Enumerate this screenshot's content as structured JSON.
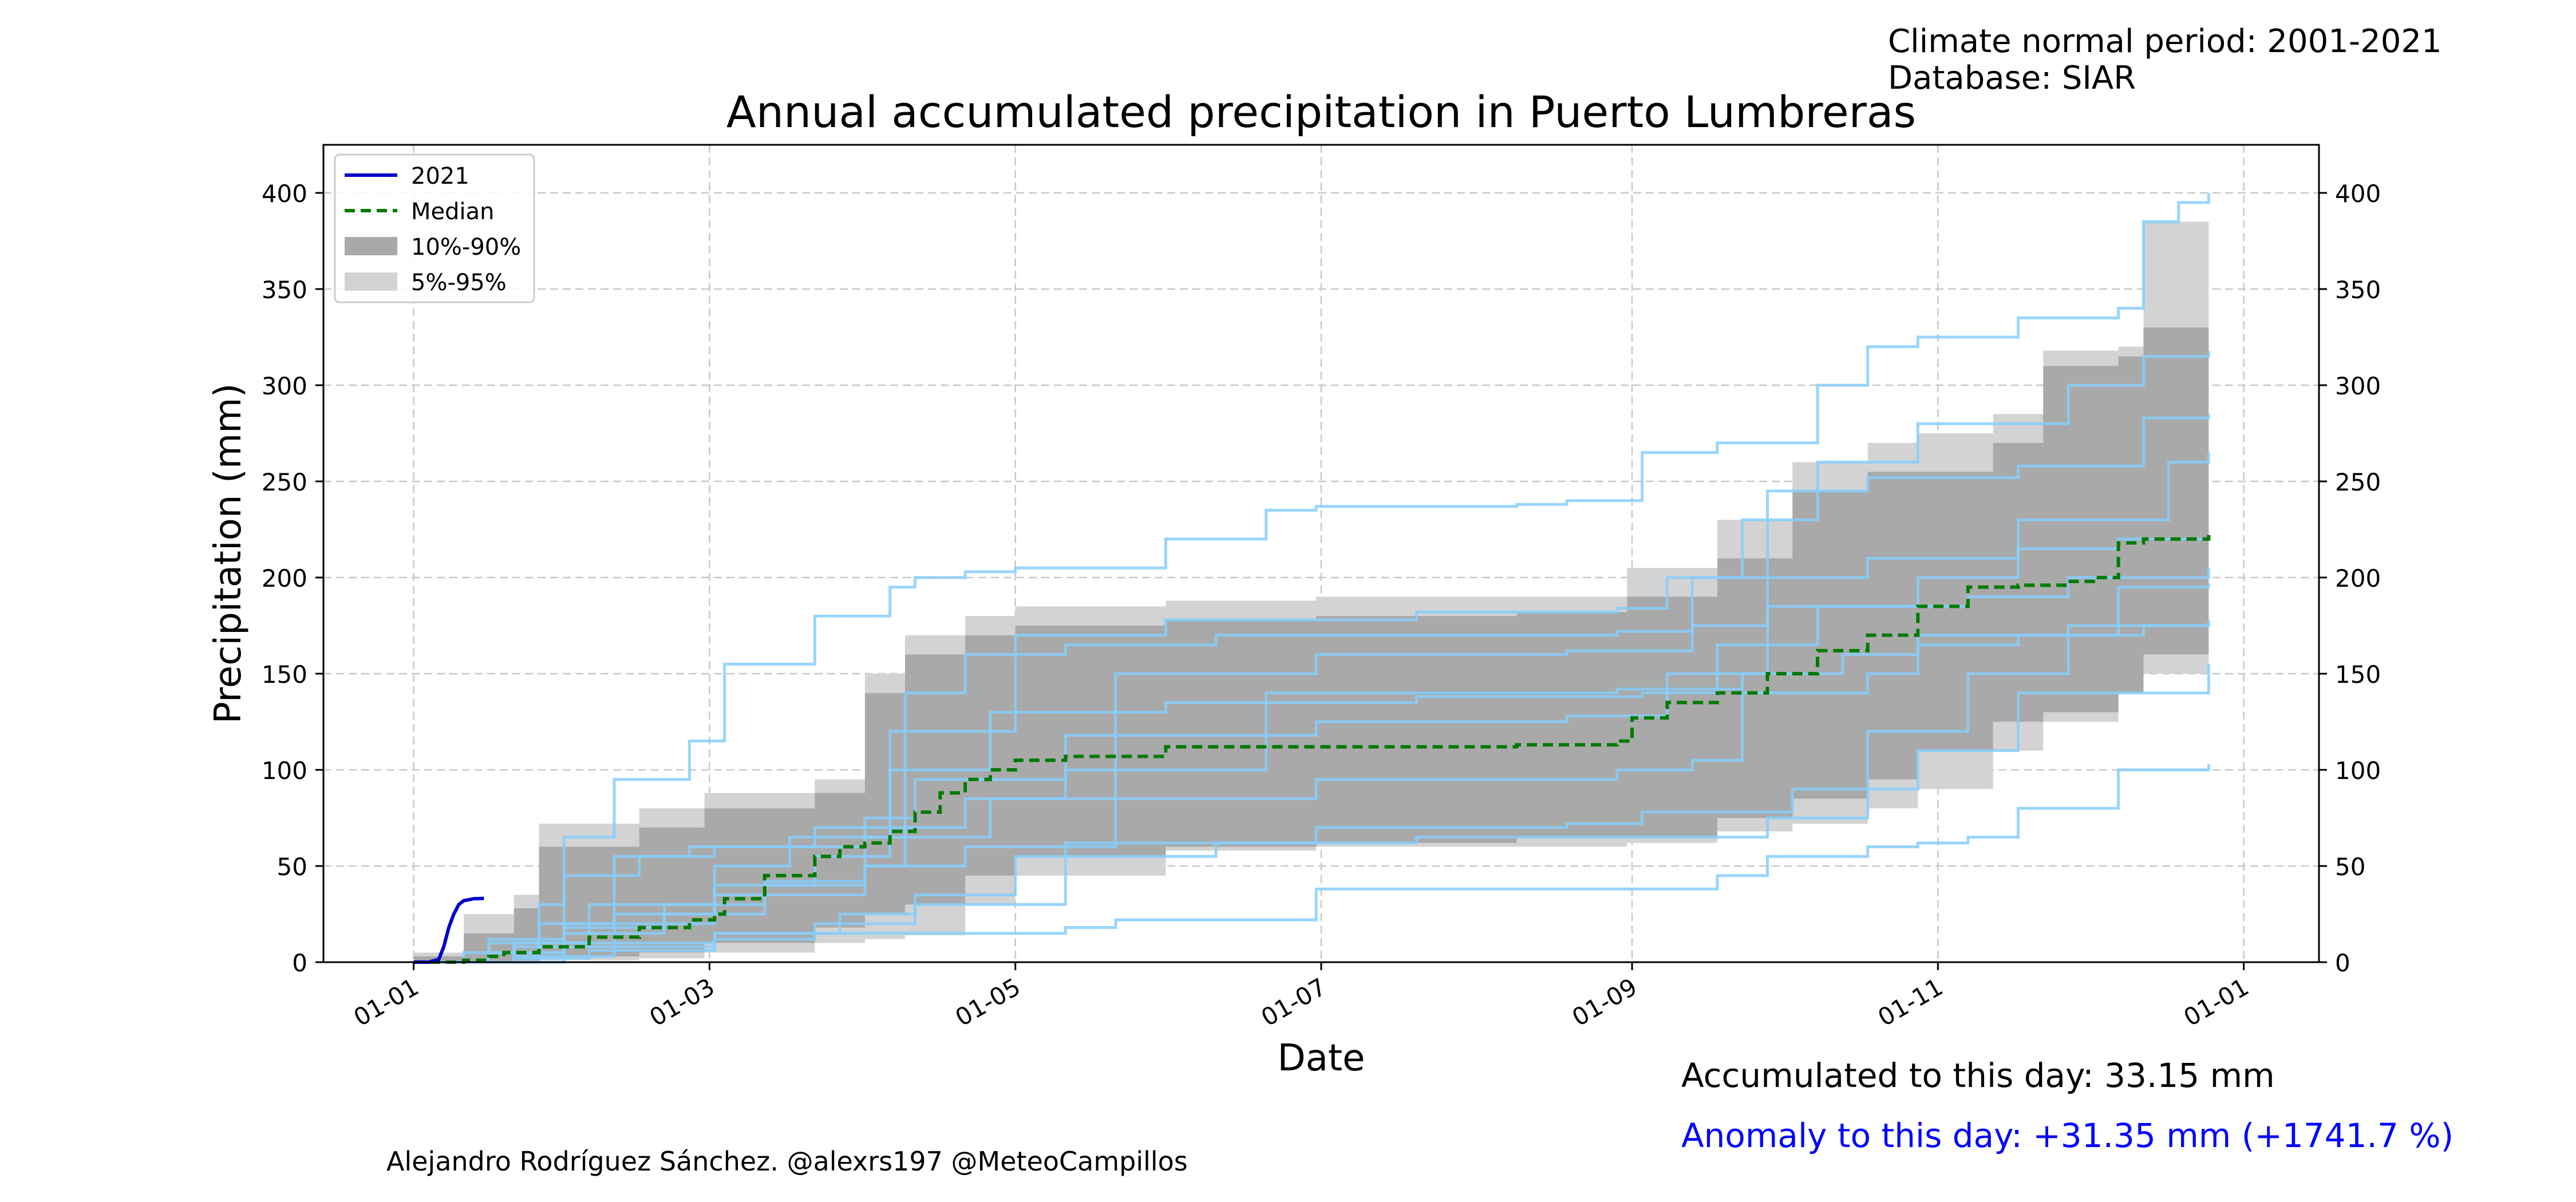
{
  "meta": {
    "period_text": "Climate normal period: 2001-2021",
    "database_text": "Database: SIAR"
  },
  "accumulated_text": "Accumulated to this day: 33.15 mm",
  "anomaly_text": "Anomaly to this day: +31.35 mm (+1741.7 %)",
  "credits_text": "Alejandro Rodríguez Sánchez. @alexrs197 @MeteoCampillos",
  "colors": {
    "current_year": "#0000cc",
    "median": "#007a00",
    "band_10_90": "#a9a9a9",
    "band_5_95": "#d3d3d3",
    "history_lines": "#87cefa",
    "anomaly_text": "#0000ff",
    "grid": "#c8c8c8"
  },
  "chart_data": {
    "type": "line",
    "title": "Annual accumulated precipitation in Puerto Lumbreras",
    "xlabel": "Date",
    "ylabel": "Precipitation (mm)",
    "x_tick_labels": [
      "01-01",
      "01-03",
      "01-05",
      "01-07",
      "01-09",
      "01-11",
      "01-01"
    ],
    "x_tick_days": [
      0,
      59,
      120,
      181,
      243,
      304,
      365
    ],
    "xlim_days": [
      -18,
      380
    ],
    "ylim": [
      0,
      425
    ],
    "y_ticks": [
      0,
      50,
      100,
      150,
      200,
      250,
      300,
      350,
      400
    ],
    "grid": true,
    "legend_position": "top-left",
    "legend": [
      {
        "label": "2021",
        "kind": "line",
        "color": "#0000cc"
      },
      {
        "label": "Median",
        "kind": "dashed",
        "color": "#007a00"
      },
      {
        "label": "10%-90%",
        "kind": "patch",
        "color": "#a9a9a9"
      },
      {
        "label": "5%-95%",
        "kind": "patch",
        "color": "#d3d3d3"
      }
    ],
    "band_5_95": {
      "days": [
        0,
        10,
        20,
        25,
        45,
        58,
        80,
        90,
        98,
        110,
        120,
        150,
        180,
        220,
        242,
        260,
        275,
        290,
        300,
        315,
        325,
        340,
        345,
        358
      ],
      "low": [
        0,
        0,
        0,
        1,
        2,
        5,
        10,
        12,
        14,
        30,
        45,
        58,
        60,
        60,
        62,
        68,
        72,
        80,
        90,
        110,
        125,
        140,
        150,
        155
      ],
      "high": [
        5,
        25,
        35,
        72,
        80,
        88,
        95,
        150,
        170,
        180,
        185,
        188,
        190,
        190,
        205,
        230,
        260,
        270,
        275,
        285,
        318,
        320,
        385,
        385
      ]
    },
    "band_10_90": {
      "days": [
        0,
        10,
        20,
        25,
        45,
        58,
        80,
        90,
        98,
        110,
        120,
        150,
        180,
        220,
        242,
        260,
        275,
        290,
        300,
        315,
        325,
        340,
        345,
        358
      ],
      "low": [
        0,
        0,
        1,
        3,
        5,
        10,
        18,
        25,
        30,
        45,
        55,
        60,
        62,
        65,
        65,
        75,
        85,
        95,
        110,
        125,
        130,
        140,
        160,
        170
      ],
      "high": [
        3,
        15,
        28,
        60,
        70,
        80,
        88,
        140,
        160,
        170,
        175,
        178,
        180,
        182,
        190,
        210,
        245,
        255,
        255,
        270,
        310,
        315,
        330,
        335
      ]
    },
    "series": [
      {
        "name": "Median",
        "style": "dashed",
        "x": [
          0,
          10,
          15,
          18,
          25,
          35,
          45,
          55,
          60,
          62,
          70,
          80,
          85,
          90,
          95,
          100,
          105,
          110,
          115,
          120,
          130,
          150,
          180,
          220,
          240,
          243,
          250,
          260,
          270,
          280,
          290,
          300,
          310,
          320,
          330,
          335,
          340,
          345,
          358
        ],
        "y": [
          0,
          1,
          3,
          5,
          8,
          13,
          18,
          22,
          25,
          33,
          45,
          55,
          60,
          62,
          68,
          78,
          88,
          95,
          100,
          105,
          107,
          112,
          112,
          113,
          115,
          127,
          135,
          140,
          150,
          162,
          170,
          185,
          195,
          196,
          198,
          200,
          218,
          220,
          225
        ]
      },
      {
        "name": "2021",
        "style": "solid",
        "x": [
          0,
          3,
          5,
          6,
          7,
          8,
          9,
          10,
          12,
          14
        ],
        "y": [
          0,
          0,
          1.5,
          8,
          18,
          25,
          30,
          32,
          33,
          33.15
        ]
      }
    ],
    "historical_years": [
      {
        "x": [
          0,
          25,
          30,
          40,
          55,
          62,
          80,
          95,
          100,
          110,
          120,
          150,
          170,
          180,
          220,
          230,
          245,
          260,
          280,
          290,
          300,
          320,
          340,
          345,
          352,
          358
        ],
        "y": [
          0,
          30,
          65,
          95,
          115,
          155,
          180,
          195,
          200,
          203,
          205,
          220,
          235,
          237,
          238,
          240,
          265,
          270,
          300,
          320,
          325,
          335,
          340,
          385,
          395,
          400
        ]
      },
      {
        "x": [
          0,
          15,
          30,
          60,
          90,
          130,
          140,
          180,
          240,
          260,
          270,
          290,
          300,
          310,
          320,
          340,
          358
        ],
        "y": [
          0,
          5,
          10,
          15,
          15,
          18,
          22,
          38,
          38,
          45,
          55,
          60,
          62,
          65,
          80,
          100,
          103
        ]
      },
      {
        "x": [
          0,
          20,
          30,
          60,
          90,
          98,
          110,
          130,
          160,
          200,
          240,
          255,
          265,
          280,
          300,
          330,
          345,
          358
        ],
        "y": [
          0,
          10,
          20,
          35,
          50,
          140,
          160,
          165,
          170,
          170,
          172,
          200,
          230,
          260,
          280,
          300,
          315,
          318
        ]
      },
      {
        "x": [
          0,
          20,
          40,
          60,
          80,
          95,
          120,
          150,
          200,
          240,
          250,
          270,
          290,
          320,
          345,
          358
        ],
        "y": [
          0,
          8,
          25,
          40,
          55,
          120,
          170,
          178,
          182,
          184,
          200,
          245,
          252,
          258,
          283,
          285
        ]
      },
      {
        "x": [
          0,
          15,
          30,
          45,
          60,
          90,
          100,
          130,
          180,
          230,
          250,
          270,
          300,
          320,
          350,
          358
        ],
        "y": [
          0,
          12,
          45,
          55,
          60,
          75,
          95,
          118,
          125,
          128,
          150,
          185,
          200,
          230,
          260,
          265
        ]
      },
      {
        "x": [
          0,
          10,
          30,
          50,
          70,
          90,
          110,
          140,
          180,
          240,
          255,
          265,
          290,
          300,
          340,
          358
        ],
        "y": [
          0,
          5,
          18,
          30,
          42,
          50,
          60,
          85,
          95,
          100,
          105,
          140,
          150,
          170,
          195,
          197
        ]
      },
      {
        "x": [
          0,
          20,
          35,
          60,
          80,
          100,
          120,
          160,
          200,
          240,
          270,
          290,
          310,
          330,
          358
        ],
        "y": [
          0,
          2,
          6,
          12,
          20,
          35,
          55,
          62,
          65,
          65,
          75,
          120,
          150,
          175,
          178
        ]
      },
      {
        "x": [
          0,
          25,
          40,
          55,
          80,
          110,
          130,
          170,
          200,
          240,
          265,
          285,
          300,
          320,
          345,
          358
        ],
        "y": [
          0,
          20,
          55,
          60,
          70,
          85,
          100,
          140,
          140,
          142,
          150,
          160,
          165,
          170,
          175,
          175
        ]
      },
      {
        "x": [
          0,
          30,
          50,
          70,
          90,
          115,
          140,
          180,
          230,
          255,
          270,
          290,
          320,
          340,
          358
        ],
        "y": [
          0,
          15,
          25,
          40,
          65,
          85,
          150,
          160,
          162,
          175,
          200,
          210,
          215,
          220,
          222
        ]
      },
      {
        "x": [
          0,
          20,
          40,
          60,
          85,
          100,
          130,
          180,
          230,
          245,
          275,
          300,
          320,
          358
        ],
        "y": [
          0,
          3,
          8,
          15,
          25,
          30,
          62,
          70,
          72,
          78,
          90,
          110,
          140,
          155
        ]
      },
      {
        "x": [
          0,
          15,
          35,
          60,
          75,
          95,
          115,
          150,
          200,
          245,
          260,
          280,
          310,
          330,
          358
        ],
        "y": [
          0,
          10,
          30,
          50,
          65,
          100,
          130,
          135,
          138,
          140,
          165,
          185,
          190,
          200,
          205
        ]
      }
    ]
  }
}
